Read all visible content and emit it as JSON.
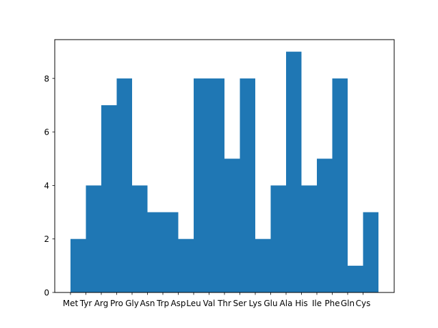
{
  "chart_data": {
    "type": "bar",
    "title": "",
    "xlabel": "",
    "ylabel": "",
    "categories": [
      "Met",
      "Tyr",
      "Arg",
      "Pro",
      "Gly",
      "Asn",
      "Trp",
      "Asp",
      "Leu",
      "Val",
      "Thr",
      "Ser",
      "Lys",
      "Glu",
      "Ala",
      "His",
      "Ile",
      "Phe",
      "Gln",
      "Cys"
    ],
    "values": [
      2,
      4,
      7,
      8,
      4,
      3,
      3,
      2,
      8,
      8,
      5,
      8,
      2,
      4,
      9,
      4,
      5,
      8,
      1,
      3
    ],
    "ylim": [
      0,
      9.45
    ],
    "yticks": [
      0,
      2,
      4,
      6,
      8
    ],
    "ytick_labels": [
      "0",
      "2",
      "4",
      "6",
      "8"
    ],
    "grid": false,
    "bar_color": "#1f77b4",
    "legend": "none"
  }
}
